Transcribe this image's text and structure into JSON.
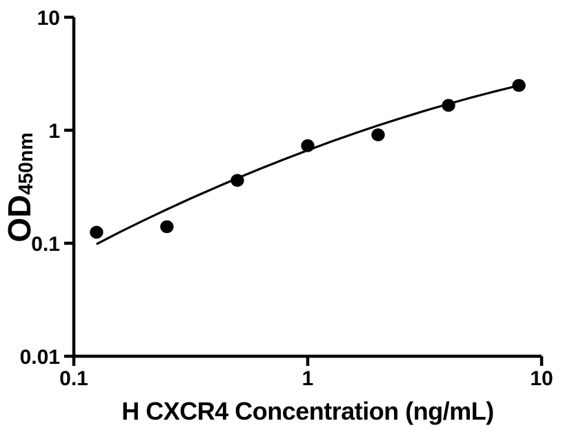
{
  "figure": {
    "background_color": "#ffffff",
    "foreground_color": "#000000"
  },
  "chart_data": {
    "type": "scatter",
    "title": "",
    "xlabel": "H CXCR4 Concentration (ng/mL)",
    "ylabel_main": "OD",
    "ylabel_sub": "450nm",
    "x_scale": "log",
    "y_scale": "log",
    "xlim": [
      0.1,
      10
    ],
    "ylim": [
      0.01,
      10
    ],
    "grid": false,
    "legend": null,
    "x_ticks": [
      {
        "value": 0.1,
        "label": "0.1"
      },
      {
        "value": 1,
        "label": "1"
      },
      {
        "value": 10,
        "label": "10"
      }
    ],
    "y_ticks": [
      {
        "value": 0.01,
        "label": "0.01"
      },
      {
        "value": 0.1,
        "label": "0.1"
      },
      {
        "value": 1,
        "label": "1"
      },
      {
        "value": 10,
        "label": "10"
      }
    ],
    "series": [
      {
        "name": "standard-points",
        "kind": "markers",
        "marker_color": "#000000",
        "x": [
          0.125,
          0.25,
          0.5,
          1,
          2,
          4,
          8
        ],
        "y": [
          0.125,
          0.14,
          0.36,
          0.73,
          0.91,
          1.66,
          2.49
        ]
      },
      {
        "name": "fit-curve",
        "kind": "line",
        "line_color": "#000000",
        "points": [
          [
            0.126,
            0.099
          ],
          [
            0.158,
            0.126
          ],
          [
            0.2,
            0.16
          ],
          [
            0.251,
            0.2
          ],
          [
            0.316,
            0.249
          ],
          [
            0.398,
            0.307
          ],
          [
            0.501,
            0.377
          ],
          [
            0.631,
            0.459
          ],
          [
            0.794,
            0.554
          ],
          [
            1.0,
            0.665
          ],
          [
            1.259,
            0.793
          ],
          [
            1.585,
            0.937
          ],
          [
            1.995,
            1.101
          ],
          [
            2.512,
            1.283
          ],
          [
            3.162,
            1.485
          ],
          [
            3.981,
            1.706
          ],
          [
            5.012,
            1.947
          ],
          [
            6.31,
            2.205
          ],
          [
            7.943,
            2.479
          ]
        ]
      }
    ]
  }
}
